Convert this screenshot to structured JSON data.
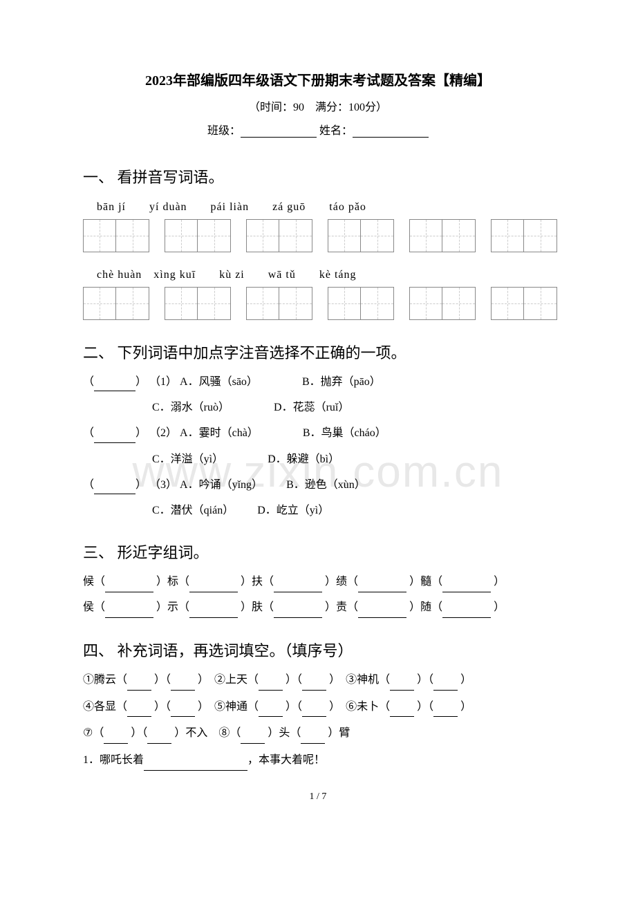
{
  "title": "2023年部编版四年级语文下册期末考试题及答案【精编】",
  "subtitle": "（时间：90　满分：100分）",
  "class_label": "班级：",
  "name_label": "姓名：",
  "watermark": "www.zixin.com.cn",
  "section1": {
    "heading": "一、 看拼音写词语。",
    "pinyin_row1": "bān jí　　yí duàn　　pái liàn　　zá guō　　táo pǎo",
    "pinyin_row2": "chè huàn　xìng kuī　　kù  zi　　wā  tǔ　　kè táng"
  },
  "section2": {
    "heading": "二、 下列词语中加点字注音选择不正确的一项。",
    "items": [
      {
        "prefix": "（1）",
        "a": "A．风骚（sāo）",
        "b": "B．抛弃（pāo）",
        "c": "C．溺水（ruò）",
        "d": "D．花蕊（ruǐ）"
      },
      {
        "prefix": "（2）",
        "a": "A．霎时（chà）",
        "b": "B．鸟巢（cháo）",
        "c": "C．洋溢（yì）",
        "d": "D．躲避（bì）"
      },
      {
        "prefix": "（3）",
        "a": "A．吟诵（yǐng）",
        "b": "B．逊色（xùn）",
        "c": "C．潜伏（qián）",
        "d": "D．屹立（yì）"
      }
    ]
  },
  "section3": {
    "heading": "三、 形近字组词。",
    "row1": [
      "候（",
      "）标（",
      "）扶（",
      "）绩（",
      "）髓（",
      "）"
    ],
    "row2": [
      "侯（",
      "）示（",
      "）肤（",
      "）责（",
      "）随（",
      "）"
    ]
  },
  "section4": {
    "heading": "四、 补充词语，再选词填空。（填序号）",
    "row1_a": "①腾云（",
    "row1_b": "）（",
    "row1_c": "）　②上天（",
    "row1_d": "）（",
    "row1_e": "）　③神机（",
    "row1_f": "）（",
    "row1_g": "）",
    "row2_a": "④各显（",
    "row2_b": "）（",
    "row2_c": "）　⑤神通（",
    "row2_d": "）（",
    "row2_e": "）　⑥未卜（",
    "row2_f": "）（",
    "row2_g": "）",
    "row3_a": "⑦（",
    "row3_b": "）（",
    "row3_c": "）不入　⑧（",
    "row3_d": "）头（",
    "row3_e": "）臂",
    "q1_prefix": "1．哪吒长着",
    "q1_suffix": "，本事大着呢！"
  },
  "page_num": "1 / 7"
}
